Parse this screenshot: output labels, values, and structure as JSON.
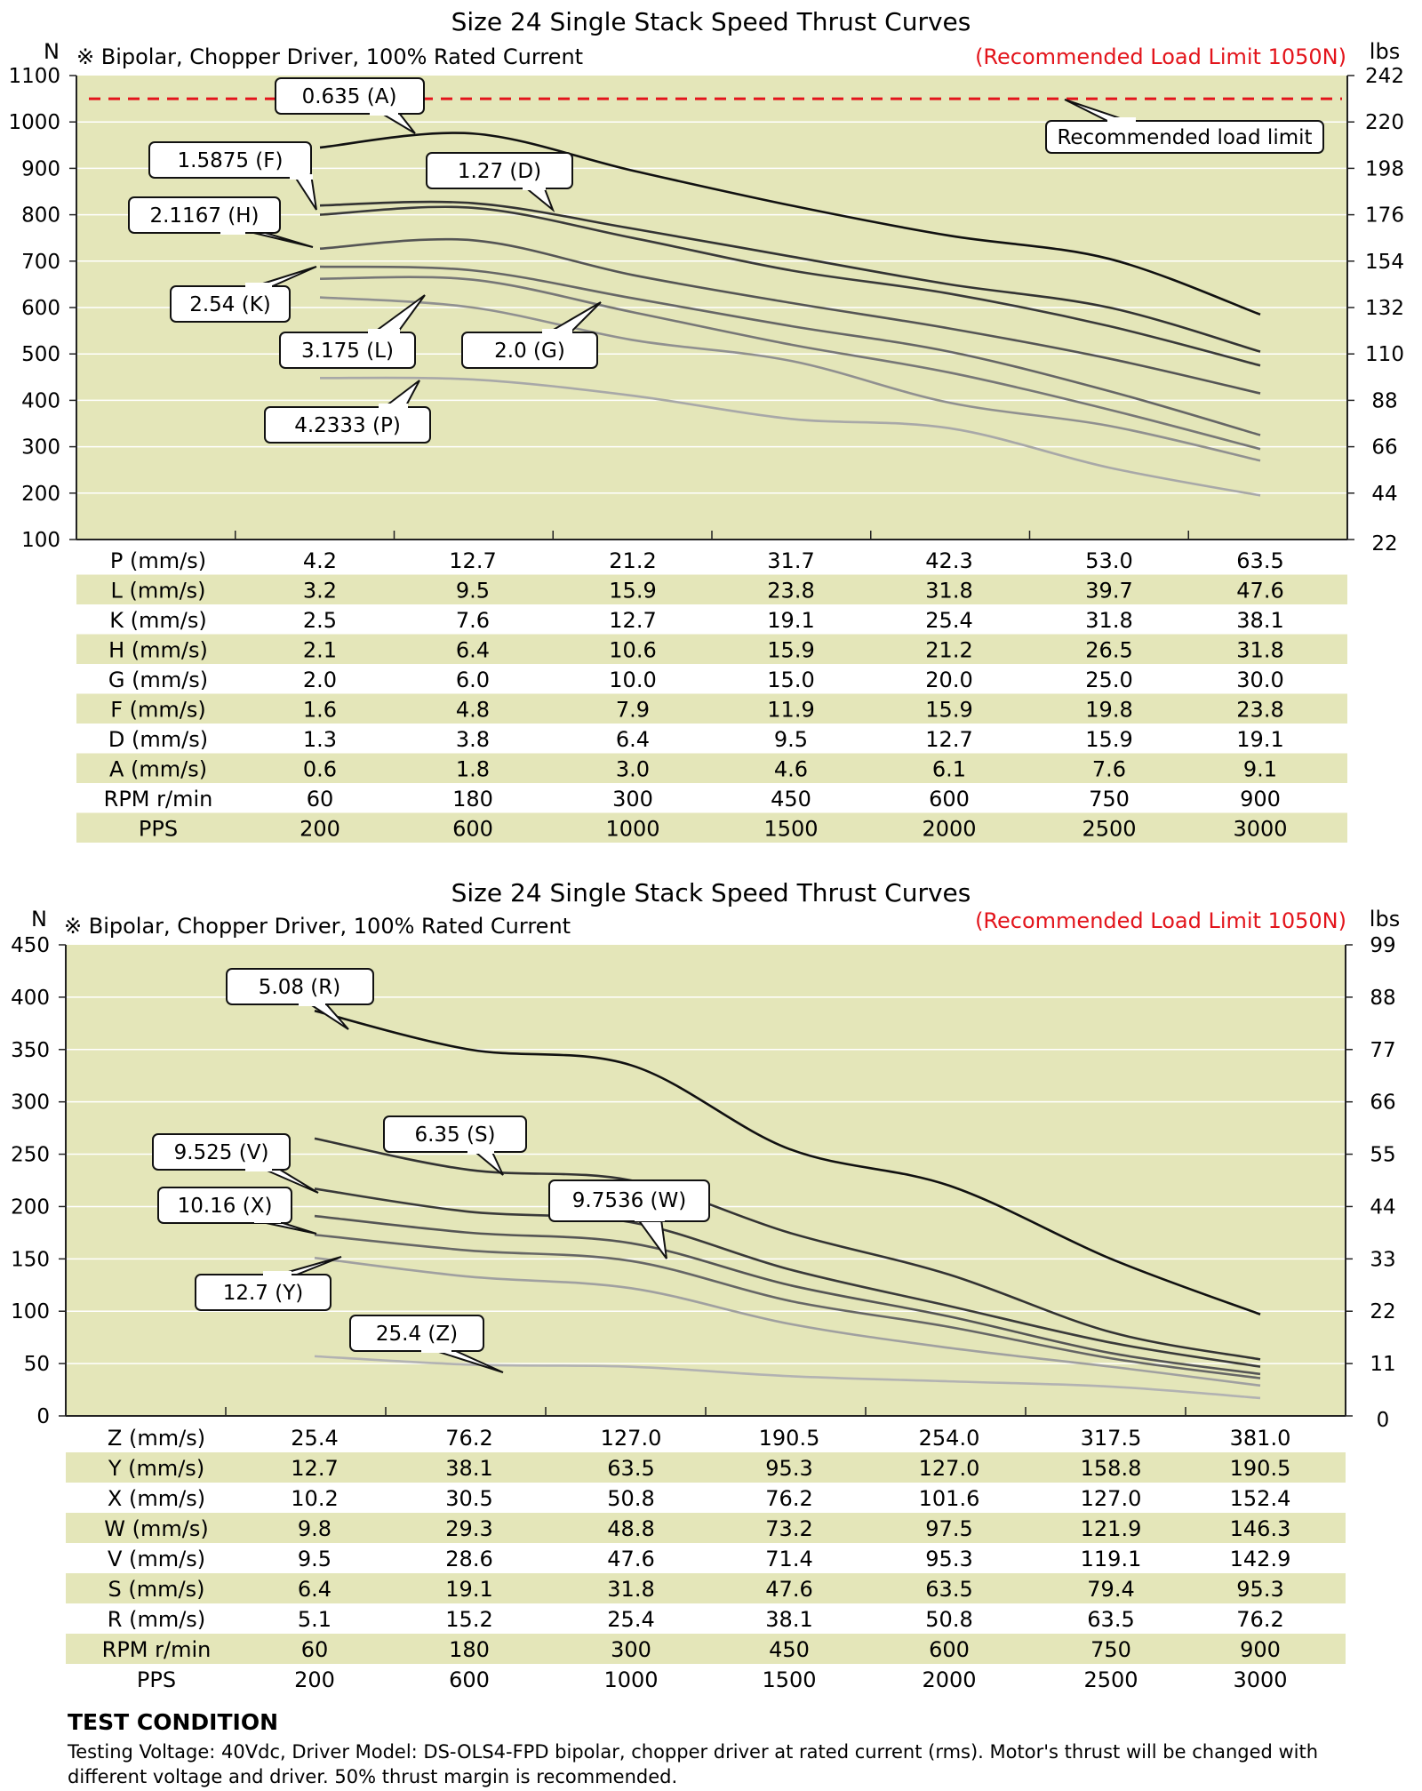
{
  "charts": [
    {
      "title": "Size 24 Single Stack Speed Thrust Curves",
      "subtitle": "※ Bipolar, Chopper Driver, 100% Rated Current",
      "warning": "(Recommended Load Limit 1050N)",
      "left_unit": "N",
      "right_unit": "lbs",
      "load_limit_label": "Recommended load limit",
      "load_limit_value": 1050,
      "y_ticks": [
        "1100",
        "1000",
        "900",
        "800",
        "700",
        "600",
        "500",
        "400",
        "300",
        "200",
        "100"
      ],
      "y2_ticks": [
        "242",
        "220",
        "198",
        "176",
        "154",
        "132",
        "110",
        "88",
        "66",
        "44",
        "22"
      ],
      "table": [
        {
          "label": "P (mm/s)",
          "values": [
            "4.2",
            "12.7",
            "21.2",
            "31.7",
            "42.3",
            "53.0",
            "63.5"
          ]
        },
        {
          "label": "L (mm/s)",
          "values": [
            "3.2",
            "9.5",
            "15.9",
            "23.8",
            "31.8",
            "39.7",
            "47.6"
          ]
        },
        {
          "label": "K (mm/s)",
          "values": [
            "2.5",
            "7.6",
            "12.7",
            "19.1",
            "25.4",
            "31.8",
            "38.1"
          ]
        },
        {
          "label": "H (mm/s)",
          "values": [
            "2.1",
            "6.4",
            "10.6",
            "15.9",
            "21.2",
            "26.5",
            "31.8"
          ]
        },
        {
          "label": "G (mm/s)",
          "values": [
            "2.0",
            "6.0",
            "10.0",
            "15.0",
            "20.0",
            "25.0",
            "30.0"
          ]
        },
        {
          "label": "F (mm/s)",
          "values": [
            "1.6",
            "4.8",
            "7.9",
            "11.9",
            "15.9",
            "19.8",
            "23.8"
          ]
        },
        {
          "label": "D (mm/s)",
          "values": [
            "1.3",
            "3.8",
            "6.4",
            "9.5",
            "12.7",
            "15.9",
            "19.1"
          ]
        },
        {
          "label": "A (mm/s)",
          "values": [
            "0.6",
            "1.8",
            "3.0",
            "4.6",
            "6.1",
            "7.6",
            "9.1"
          ]
        },
        {
          "label": "RPM r/min",
          "values": [
            "60",
            "180",
            "300",
            "450",
            "600",
            "750",
            "900"
          ]
        },
        {
          "label": "PPS",
          "values": [
            "200",
            "600",
            "1000",
            "1500",
            "2000",
            "2500",
            "3000"
          ]
        }
      ],
      "series_labels": [
        "0.635  (A)",
        "1.5875  (F)",
        "1.27  (D)",
        "2.1167  (H)",
        "2.54  (K)",
        "3.175  (L)",
        "2.0  (G)",
        "4.2333  (P)"
      ]
    },
    {
      "title": "Size 24 Single Stack Speed Thrust Curves",
      "subtitle": "※ Bipolar, Chopper Driver, 100% Rated Current",
      "warning": "(Recommended Load Limit 1050N)",
      "left_unit": "N",
      "right_unit": "lbs",
      "y_ticks": [
        "450",
        "400",
        "350",
        "300",
        "250",
        "200",
        "150",
        "100",
        "50",
        "0"
      ],
      "y2_ticks": [
        "99",
        "88",
        "77",
        "66",
        "55",
        "44",
        "33",
        "22",
        "11",
        "0"
      ],
      "table": [
        {
          "label": "Z (mm/s)",
          "values": [
            "25.4",
            "76.2",
            "127.0",
            "190.5",
            "254.0",
            "317.5",
            "381.0"
          ]
        },
        {
          "label": "Y (mm/s)",
          "values": [
            "12.7",
            "38.1",
            "63.5",
            "95.3",
            "127.0",
            "158.8",
            "190.5"
          ]
        },
        {
          "label": "X (mm/s)",
          "values": [
            "10.2",
            "30.5",
            "50.8",
            "76.2",
            "101.6",
            "127.0",
            "152.4"
          ]
        },
        {
          "label": "W (mm/s)",
          "values": [
            "9.8",
            "29.3",
            "48.8",
            "73.2",
            "97.5",
            "121.9",
            "146.3"
          ]
        },
        {
          "label": "V (mm/s)",
          "values": [
            "9.5",
            "28.6",
            "47.6",
            "71.4",
            "95.3",
            "119.1",
            "142.9"
          ]
        },
        {
          "label": "S (mm/s)",
          "values": [
            "6.4",
            "19.1",
            "31.8",
            "47.6",
            "63.5",
            "79.4",
            "95.3"
          ]
        },
        {
          "label": "R (mm/s)",
          "values": [
            "5.1",
            "15.2",
            "25.4",
            "38.1",
            "50.8",
            "63.5",
            "76.2"
          ]
        },
        {
          "label": "RPM r/min",
          "values": [
            "60",
            "180",
            "300",
            "450",
            "600",
            "750",
            "900"
          ]
        },
        {
          "label": "PPS",
          "values": [
            "200",
            "600",
            "1000",
            "1500",
            "2000",
            "2500",
            "3000"
          ]
        }
      ],
      "series_labels": [
        "5.08  (R)",
        "6.35  (S)",
        "9.525  (V)",
        "9.7536  (W)",
        "10.16  (X)",
        "12.7  (Y)",
        "25.4  (Z)"
      ]
    }
  ],
  "chart_data": [
    {
      "type": "line",
      "title": "Size 24 Single Stack Speed Thrust Curves",
      "xlabel": "PPS",
      "ylabel": "N",
      "y2label": "lbs",
      "ylim": [
        100,
        1100
      ],
      "x": [
        200,
        600,
        1000,
        1500,
        2000,
        2500,
        3000
      ],
      "series": [
        {
          "name": "0.635  (A)",
          "color": "#111111",
          "values": [
            945,
            975,
            895,
            820,
            755,
            705,
            585
          ]
        },
        {
          "name": "1.27  (D)",
          "color": "#333333",
          "values": [
            820,
            825,
            770,
            710,
            650,
            600,
            505
          ]
        },
        {
          "name": "1.5875  (F)",
          "color": "#3a3a3a",
          "values": [
            800,
            815,
            750,
            680,
            630,
            560,
            475
          ]
        },
        {
          "name": "2.1167  (H)",
          "color": "#555555",
          "values": [
            727,
            745,
            670,
            610,
            555,
            490,
            415
          ]
        },
        {
          "name": "2.54  (K)",
          "color": "#666666",
          "values": [
            688,
            680,
            620,
            560,
            505,
            420,
            325
          ]
        },
        {
          "name": "2.0  (G)",
          "color": "#777777",
          "values": [
            662,
            660,
            590,
            520,
            460,
            380,
            295
          ]
        },
        {
          "name": "3.175  (L)",
          "color": "#909090",
          "values": [
            622,
            600,
            530,
            485,
            395,
            345,
            270
          ]
        },
        {
          "name": "4.2333  (P)",
          "color": "#a8a8a8",
          "values": [
            448,
            445,
            410,
            360,
            340,
            255,
            195
          ]
        }
      ]
    },
    {
      "type": "line",
      "title": "Size 24 Single Stack Speed Thrust Curves",
      "xlabel": "PPS",
      "ylabel": "N",
      "y2label": "lbs",
      "ylim": [
        0,
        450
      ],
      "x": [
        200,
        600,
        1000,
        1500,
        2000,
        2500,
        3000
      ],
      "series": [
        {
          "name": "5.08  (R)",
          "color": "#111111",
          "values": [
            387,
            350,
            335,
            255,
            220,
            150,
            97
          ]
        },
        {
          "name": "6.35  (S)",
          "color": "#333333",
          "values": [
            265,
            235,
            225,
            175,
            135,
            80,
            54
          ]
        },
        {
          "name": "9.525  (V)",
          "color": "#3a3a3a",
          "values": [
            217,
            195,
            185,
            140,
            105,
            70,
            47
          ]
        },
        {
          "name": "9.7536  (W)",
          "color": "#555555",
          "values": [
            191,
            175,
            165,
            125,
            95,
            60,
            40
          ]
        },
        {
          "name": "10.16  (X)",
          "color": "#666666",
          "values": [
            173,
            158,
            148,
            110,
            85,
            55,
            36
          ]
        },
        {
          "name": "12.7  (Y)",
          "color": "#a0a0a0",
          "values": [
            151,
            133,
            122,
            88,
            65,
            47,
            29
          ]
        },
        {
          "name": "25.4  (Z)",
          "color": "#b2b2b2",
          "values": [
            57,
            49,
            47,
            38,
            33,
            28,
            17
          ]
        }
      ]
    }
  ],
  "test_condition": {
    "heading": "TEST CONDITION",
    "line1": "Testing Voltage: 40Vdc, Driver Model: DS-OLS4-FPD bipolar, chopper driver at rated current (rms). Motor's thrust will be changed with",
    "line2": "different voltage and driver. 50% thrust margin is recommended."
  },
  "colors": {
    "plot_bg": "#e4e6b9",
    "row_band": "#e4e6b9",
    "grid": "#ffffff",
    "warning": "#e3141b"
  }
}
